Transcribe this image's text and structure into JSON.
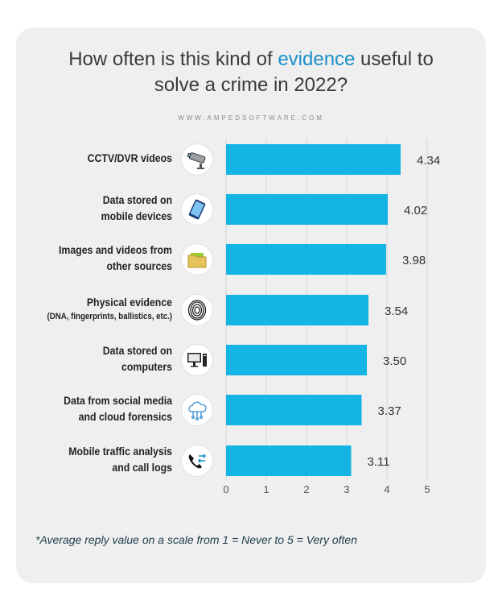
{
  "header": {
    "title_part1": "How often is this kind of ",
    "title_accent": "evidence",
    "title_part2": " useful to",
    "title_line2": "solve a crime in 2022?",
    "website": "WWW.AMPEDSOFTWARE.COM"
  },
  "colors": {
    "bar": "#14b4e4",
    "accent": "#1b8fc9",
    "card": "#efefef"
  },
  "chart_data": {
    "type": "bar",
    "orientation": "horizontal",
    "categories": [
      {
        "line1": "CCTV/DVR videos",
        "line2": "",
        "icon": "cctv-camera-icon"
      },
      {
        "line1": "Data stored on",
        "line2": "mobile devices",
        "icon": "smartphone-icon"
      },
      {
        "line1": "Images and videos from",
        "line2": "other sources",
        "icon": "folder-icon"
      },
      {
        "line1": "Physical evidence",
        "line2": "(DNA, fingerprints, ballistics, etc.)",
        "icon": "fingerprint-icon"
      },
      {
        "line1": "Data stored on",
        "line2": "computers",
        "icon": "desktop-computer-icon"
      },
      {
        "line1": "Data from social media",
        "line2": "and cloud forensics",
        "icon": "cloud-icon"
      },
      {
        "line1": "Mobile traffic analysis",
        "line2": "and call logs",
        "icon": "phone-call-icon"
      }
    ],
    "values": [
      4.34,
      4.02,
      3.98,
      3.54,
      3.5,
      3.37,
      3.11
    ],
    "value_labels": [
      "4.34",
      "4.02",
      "3.98",
      "3.54",
      "3.50",
      "3.37",
      "3.11"
    ],
    "xlim": [
      0,
      5
    ],
    "xticks": [
      "0",
      "1",
      "2",
      "3",
      "4",
      "5"
    ],
    "grid": true
  },
  "footnote": "*Average reply value on a scale from 1 = Never to 5 = Very often"
}
